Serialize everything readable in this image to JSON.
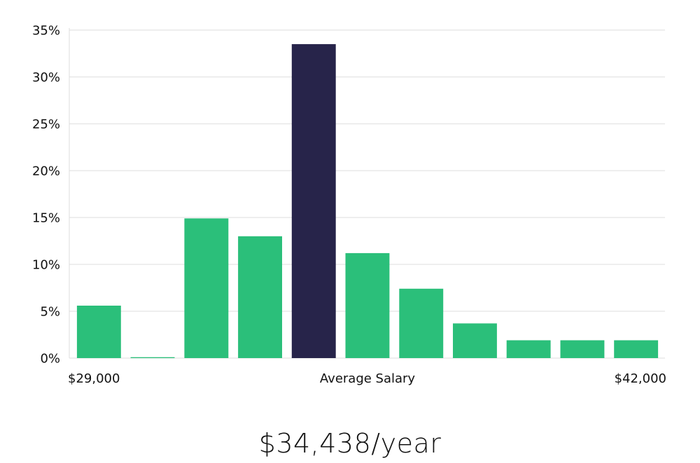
{
  "chart_data": {
    "type": "bar",
    "y_ticks": [
      "0%",
      "5%",
      "10%",
      "15%",
      "20%",
      "25%",
      "30%",
      "35%"
    ],
    "ylim": [
      0,
      35
    ],
    "grid": true,
    "values": [
      5.6,
      0.1,
      14.9,
      13.0,
      33.5,
      11.2,
      7.4,
      3.7,
      1.9,
      1.9,
      1.9
    ],
    "highlight_index": 4,
    "x_start_label": "$29,000",
    "x_center_label": "Average Salary",
    "x_end_label": "$42,000",
    "colors": {
      "bar": "#2bbf7a",
      "highlight": "#27244a",
      "grid": "#dcdcdc"
    }
  },
  "salary": {
    "headline": "$34,438/year"
  }
}
